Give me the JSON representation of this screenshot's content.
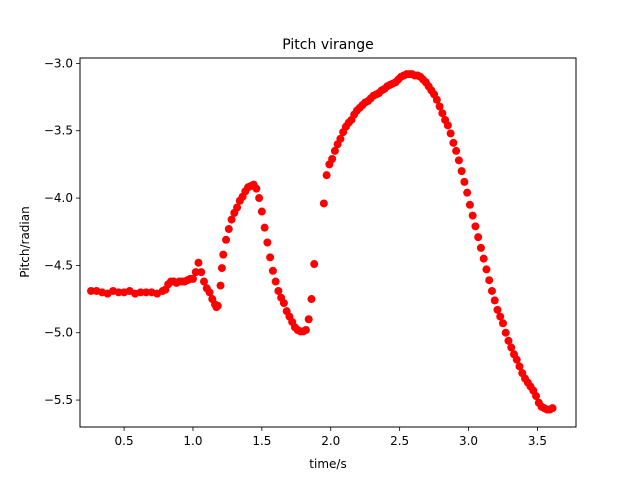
{
  "chart_data": {
    "type": "scatter",
    "title": "Pitch virange",
    "xlabel": "time/s",
    "ylabel": "Pitch/radian",
    "xlim": [
      0.18,
      3.78
    ],
    "ylim": [
      -5.7,
      -2.96
    ],
    "xticks": [
      0.5,
      1.0,
      1.5,
      2.0,
      2.5,
      3.0,
      3.5
    ],
    "xtick_labels": [
      "0.5",
      "1.0",
      "1.5",
      "2.0",
      "2.5",
      "3.0",
      "3.5"
    ],
    "yticks": [
      -3.0,
      -3.5,
      -4.0,
      -4.5,
      -5.0,
      -5.5
    ],
    "ytick_labels": [
      "−3.0",
      "−3.5",
      "−4.0",
      "−4.5",
      "−5.0",
      "−5.5"
    ],
    "grid": false,
    "marker_color": "#ff0000",
    "series": [
      {
        "x": [
          0.26,
          0.3,
          0.34,
          0.38,
          0.42,
          0.46,
          0.5,
          0.54,
          0.58,
          0.62,
          0.66,
          0.7,
          0.74,
          0.78,
          0.8,
          0.82,
          0.84,
          0.86,
          0.88,
          0.9,
          0.92,
          0.94,
          0.96,
          0.98,
          1.0,
          1.02,
          1.04,
          1.06,
          1.08,
          1.1,
          1.12,
          1.14,
          1.16,
          1.17,
          1.18,
          1.2,
          1.21,
          1.22,
          1.24,
          1.26,
          1.28,
          1.3,
          1.32,
          1.34,
          1.36,
          1.38,
          1.4,
          1.42,
          1.44,
          1.46,
          1.48,
          1.5,
          1.52,
          1.54,
          1.56,
          1.58,
          1.6,
          1.62,
          1.64,
          1.66,
          1.68,
          1.7,
          1.72,
          1.74,
          1.76,
          1.78,
          1.8,
          1.82,
          1.84,
          1.86,
          1.88,
          1.95,
          1.97,
          1.99,
          2.01,
          2.03,
          2.05,
          2.07,
          2.09,
          2.11,
          2.13,
          2.15,
          2.17,
          2.19,
          2.21,
          2.23,
          2.25,
          2.27,
          2.29,
          2.31,
          2.33,
          2.35,
          2.37,
          2.39,
          2.41,
          2.43,
          2.45,
          2.47,
          2.49,
          2.51,
          2.53,
          2.55,
          2.57,
          2.59,
          2.61,
          2.63,
          2.65,
          2.67,
          2.69,
          2.71,
          2.73,
          2.75,
          2.77,
          2.79,
          2.81,
          2.83,
          2.85,
          2.87,
          2.89,
          2.91,
          2.93,
          2.95,
          2.97,
          2.99,
          3.01,
          3.03,
          3.05,
          3.07,
          3.09,
          3.11,
          3.13,
          3.15,
          3.17,
          3.19,
          3.21,
          3.23,
          3.25,
          3.27,
          3.29,
          3.31,
          3.33,
          3.35,
          3.37,
          3.39,
          3.41,
          3.43,
          3.45,
          3.47,
          3.49,
          3.51,
          3.53,
          3.55,
          3.57,
          3.59,
          3.61
        ],
        "y": [
          -4.69,
          -4.69,
          -4.7,
          -4.71,
          -4.69,
          -4.7,
          -4.7,
          -4.69,
          -4.71,
          -4.7,
          -4.7,
          -4.7,
          -4.71,
          -4.69,
          -4.68,
          -4.64,
          -4.62,
          -4.62,
          -4.63,
          -4.62,
          -4.62,
          -4.62,
          -4.61,
          -4.6,
          -4.6,
          -4.55,
          -4.48,
          -4.55,
          -4.62,
          -4.67,
          -4.7,
          -4.75,
          -4.79,
          -4.81,
          -4.8,
          -4.65,
          -4.52,
          -4.42,
          -4.31,
          -4.23,
          -4.16,
          -4.11,
          -4.07,
          -4.02,
          -3.99,
          -3.95,
          -3.92,
          -3.91,
          -3.9,
          -3.93,
          -4.0,
          -4.1,
          -4.22,
          -4.33,
          -4.44,
          -4.54,
          -4.62,
          -4.69,
          -4.74,
          -4.78,
          -4.84,
          -4.88,
          -4.92,
          -4.96,
          -4.98,
          -4.99,
          -4.99,
          -4.98,
          -4.9,
          -4.75,
          -4.49,
          -4.04,
          -3.83,
          -3.75,
          -3.71,
          -3.65,
          -3.6,
          -3.56,
          -3.51,
          -3.47,
          -3.44,
          -3.42,
          -3.38,
          -3.35,
          -3.33,
          -3.31,
          -3.29,
          -3.28,
          -3.26,
          -3.24,
          -3.23,
          -3.22,
          -3.2,
          -3.19,
          -3.17,
          -3.16,
          -3.15,
          -3.14,
          -3.12,
          -3.1,
          -3.09,
          -3.08,
          -3.08,
          -3.08,
          -3.09,
          -3.09,
          -3.1,
          -3.12,
          -3.14,
          -3.17,
          -3.2,
          -3.23,
          -3.27,
          -3.32,
          -3.37,
          -3.42,
          -3.46,
          -3.52,
          -3.59,
          -3.65,
          -3.72,
          -3.8,
          -3.88,
          -3.96,
          -4.05,
          -4.13,
          -4.21,
          -4.29,
          -4.37,
          -4.45,
          -4.53,
          -4.61,
          -4.69,
          -4.76,
          -4.83,
          -4.88,
          -4.93,
          -5.0,
          -5.06,
          -5.11,
          -5.16,
          -5.2,
          -5.25,
          -5.3,
          -5.34,
          -5.37,
          -5.4,
          -5.43,
          -5.47,
          -5.52,
          -5.55,
          -5.56,
          -5.57,
          -5.57,
          -5.56
        ]
      }
    ]
  }
}
